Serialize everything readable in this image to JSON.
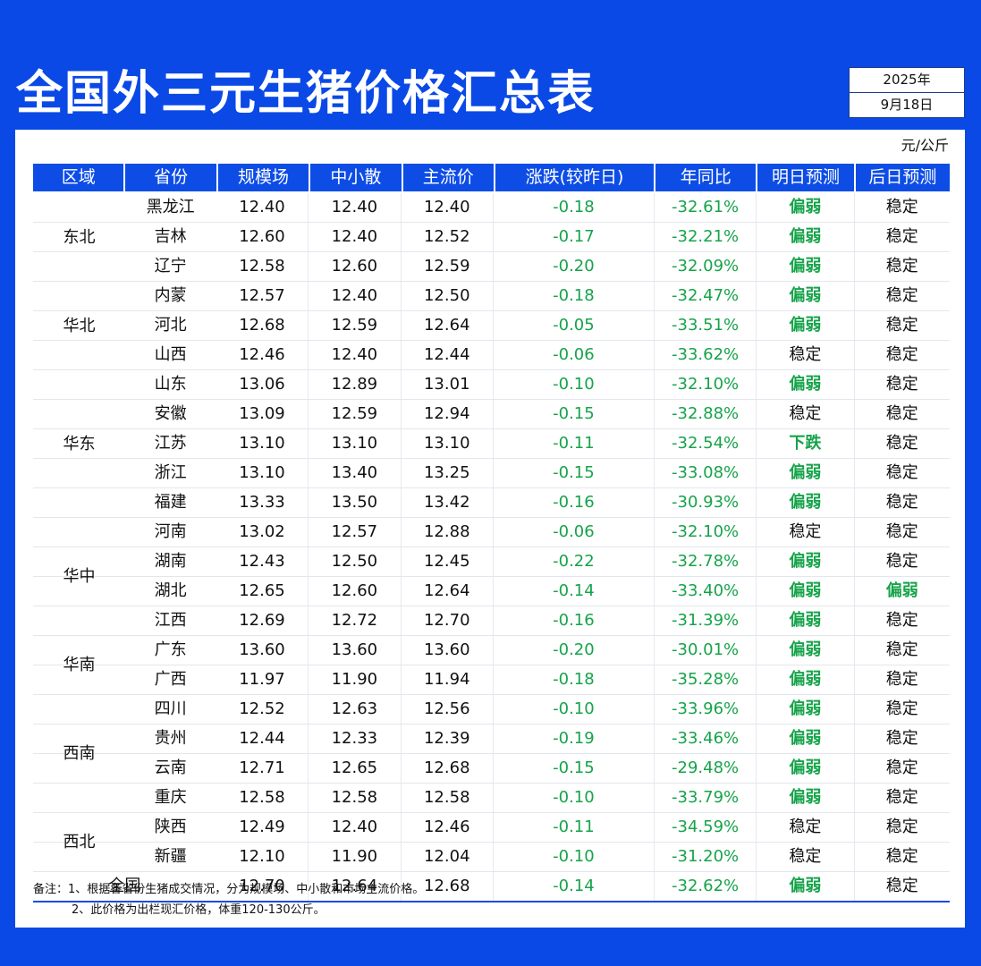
{
  "header": {
    "title": "全国外三元生猪价格汇总表",
    "year": "2025年",
    "date": "9月18日",
    "unit": "元/公斤"
  },
  "table": {
    "columns": [
      "区域",
      "省份",
      "规模场",
      "中小散",
      "主流价",
      "涨跌(较昨日)",
      "年同比",
      "明日预测",
      "后日预测"
    ],
    "regions": [
      {
        "name": "东北",
        "start": 0,
        "span": 3
      },
      {
        "name": "华北",
        "start": 3,
        "span": 3
      },
      {
        "name": "华东",
        "start": 6,
        "span": 5
      },
      {
        "name": "华中",
        "start": 11,
        "span": 4
      },
      {
        "name": "华南",
        "start": 15,
        "span": 2
      },
      {
        "name": "西南",
        "start": 17,
        "span": 4
      },
      {
        "name": "西北",
        "start": 21,
        "span": 2
      }
    ],
    "rows": [
      {
        "province": "黑龙江",
        "scale": "12.40",
        "small": "12.40",
        "main": "12.40",
        "change": "-0.18",
        "yoy": "-32.61%",
        "tomorrow": "偏弱",
        "after": "稳定"
      },
      {
        "province": "吉林",
        "scale": "12.60",
        "small": "12.40",
        "main": "12.52",
        "change": "-0.17",
        "yoy": "-32.21%",
        "tomorrow": "偏弱",
        "after": "稳定"
      },
      {
        "province": "辽宁",
        "scale": "12.58",
        "small": "12.60",
        "main": "12.59",
        "change": "-0.20",
        "yoy": "-32.09%",
        "tomorrow": "偏弱",
        "after": "稳定"
      },
      {
        "province": "内蒙",
        "scale": "12.57",
        "small": "12.40",
        "main": "12.50",
        "change": "-0.18",
        "yoy": "-32.47%",
        "tomorrow": "偏弱",
        "after": "稳定"
      },
      {
        "province": "河北",
        "scale": "12.68",
        "small": "12.59",
        "main": "12.64",
        "change": "-0.05",
        "yoy": "-33.51%",
        "tomorrow": "偏弱",
        "after": "稳定"
      },
      {
        "province": "山西",
        "scale": "12.46",
        "small": "12.40",
        "main": "12.44",
        "change": "-0.06",
        "yoy": "-33.62%",
        "tomorrow": "稳定",
        "after": "稳定"
      },
      {
        "province": "山东",
        "scale": "13.06",
        "small": "12.89",
        "main": "13.01",
        "change": "-0.10",
        "yoy": "-32.10%",
        "tomorrow": "偏弱",
        "after": "稳定"
      },
      {
        "province": "安徽",
        "scale": "13.09",
        "small": "12.59",
        "main": "12.94",
        "change": "-0.15",
        "yoy": "-32.88%",
        "tomorrow": "稳定",
        "after": "稳定"
      },
      {
        "province": "江苏",
        "scale": "13.10",
        "small": "13.10",
        "main": "13.10",
        "change": "-0.11",
        "yoy": "-32.54%",
        "tomorrow": "下跌",
        "after": "稳定"
      },
      {
        "province": "浙江",
        "scale": "13.10",
        "small": "13.40",
        "main": "13.25",
        "change": "-0.15",
        "yoy": "-33.08%",
        "tomorrow": "偏弱",
        "after": "稳定"
      },
      {
        "province": "福建",
        "scale": "13.33",
        "small": "13.50",
        "main": "13.42",
        "change": "-0.16",
        "yoy": "-30.93%",
        "tomorrow": "偏弱",
        "after": "稳定"
      },
      {
        "province": "河南",
        "scale": "13.02",
        "small": "12.57",
        "main": "12.88",
        "change": "-0.06",
        "yoy": "-32.10%",
        "tomorrow": "稳定",
        "after": "稳定"
      },
      {
        "province": "湖南",
        "scale": "12.43",
        "small": "12.50",
        "main": "12.45",
        "change": "-0.22",
        "yoy": "-32.78%",
        "tomorrow": "偏弱",
        "after": "稳定"
      },
      {
        "province": "湖北",
        "scale": "12.65",
        "small": "12.60",
        "main": "12.64",
        "change": "-0.14",
        "yoy": "-33.40%",
        "tomorrow": "偏弱",
        "after": "偏弱"
      },
      {
        "province": "江西",
        "scale": "12.69",
        "small": "12.72",
        "main": "12.70",
        "change": "-0.16",
        "yoy": "-31.39%",
        "tomorrow": "偏弱",
        "after": "稳定"
      },
      {
        "province": "广东",
        "scale": "13.60",
        "small": "13.60",
        "main": "13.60",
        "change": "-0.20",
        "yoy": "-30.01%",
        "tomorrow": "偏弱",
        "after": "稳定"
      },
      {
        "province": "广西",
        "scale": "11.97",
        "small": "11.90",
        "main": "11.94",
        "change": "-0.18",
        "yoy": "-35.28%",
        "tomorrow": "偏弱",
        "after": "稳定"
      },
      {
        "province": "四川",
        "scale": "12.52",
        "small": "12.63",
        "main": "12.56",
        "change": "-0.10",
        "yoy": "-33.96%",
        "tomorrow": "偏弱",
        "after": "稳定"
      },
      {
        "province": "贵州",
        "scale": "12.44",
        "small": "12.33",
        "main": "12.39",
        "change": "-0.19",
        "yoy": "-33.46%",
        "tomorrow": "偏弱",
        "after": "稳定"
      },
      {
        "province": "云南",
        "scale": "12.71",
        "small": "12.65",
        "main": "12.68",
        "change": "-0.15",
        "yoy": "-29.48%",
        "tomorrow": "偏弱",
        "after": "稳定"
      },
      {
        "province": "重庆",
        "scale": "12.58",
        "small": "12.58",
        "main": "12.58",
        "change": "-0.10",
        "yoy": "-33.79%",
        "tomorrow": "偏弱",
        "after": "稳定"
      },
      {
        "province": "陕西",
        "scale": "12.49",
        "small": "12.40",
        "main": "12.46",
        "change": "-0.11",
        "yoy": "-34.59%",
        "tomorrow": "稳定",
        "after": "稳定"
      },
      {
        "province": "新疆",
        "scale": "12.10",
        "small": "11.90",
        "main": "12.04",
        "change": "-0.10",
        "yoy": "-31.20%",
        "tomorrow": "稳定",
        "after": "稳定"
      }
    ],
    "total": {
      "label": "全国",
      "scale": "12.70",
      "small": "12.64",
      "main": "12.68",
      "change": "-0.14",
      "yoy": "-32.62%",
      "tomorrow": "偏弱",
      "after": "稳定"
    }
  },
  "notes": {
    "line1": "备注：1、根据各省份生猪成交情况，分为规模场、中小散和市场主流价格。",
    "line2": "2、此价格为出栏现汇价格，体重120-130公斤。"
  },
  "colors": {
    "background": "#0a49e6",
    "header_row": "#0d4de6",
    "negative_green": "#16a34a"
  }
}
